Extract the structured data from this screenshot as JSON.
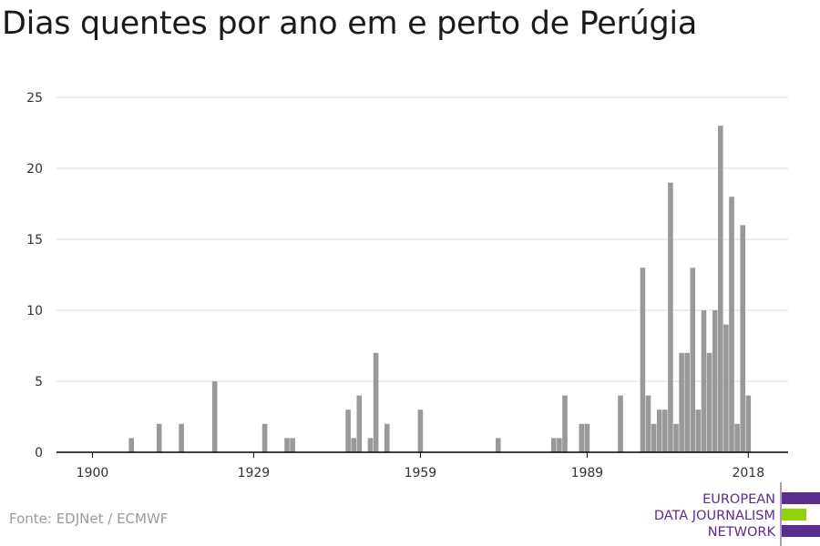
{
  "title": "Dias quentes por ano em e perto de Perúgia",
  "source": "Fonte: EDJNet / ECMWF",
  "logo": {
    "lines": [
      "EUROPEAN",
      "DATA JOURNALISM",
      "NETWORK"
    ],
    "colors": {
      "purple": "#5c2d91",
      "green": "#8fd400"
    }
  },
  "colors": {
    "bar": "#999999",
    "grid": "#dddddd",
    "axis": "#000000"
  },
  "chart_data": {
    "type": "bar",
    "title": "Dias quentes por ano em e perto de Perúgia",
    "xlabel": "",
    "ylabel": "",
    "xlim": [
      1900,
      2018
    ],
    "ylim": [
      0,
      25
    ],
    "yticks": [
      0,
      5,
      10,
      15,
      20,
      25
    ],
    "xticks": [
      1900,
      1929,
      1959,
      1989,
      2018
    ],
    "grid": true,
    "x": [
      1907,
      1912,
      1916,
      1922,
      1931,
      1935,
      1936,
      1946,
      1947,
      1948,
      1950,
      1951,
      1953,
      1959,
      1973,
      1983,
      1984,
      1985,
      1988,
      1989,
      1995,
      1999,
      2000,
      2001,
      2002,
      2003,
      2004,
      2005,
      2006,
      2007,
      2008,
      2009,
      2010,
      2011,
      2012,
      2013,
      2014,
      2015,
      2016,
      2017,
      2018
    ],
    "values": [
      1,
      2,
      2,
      5,
      2,
      1,
      1,
      3,
      1,
      4,
      1,
      7,
      2,
      3,
      1,
      1,
      1,
      4,
      2,
      2,
      4,
      13,
      4,
      2,
      3,
      3,
      19,
      2,
      7,
      7,
      13,
      3,
      10,
      7,
      10,
      23,
      9,
      18,
      2,
      16,
      4
    ]
  }
}
